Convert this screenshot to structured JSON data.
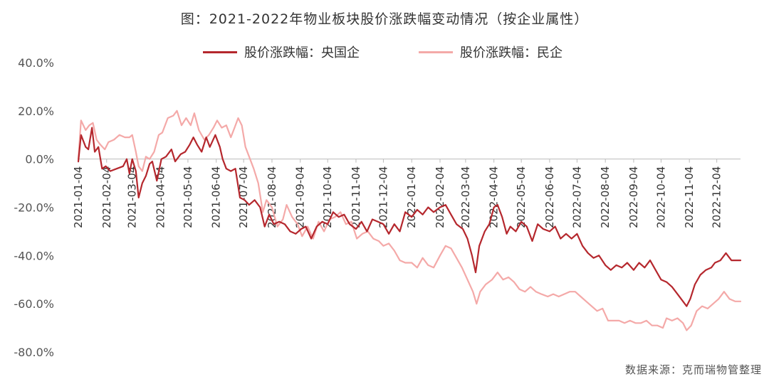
{
  "title": "图：2021-2022年物业板块股价涨跌幅变动情况（按企业属性）",
  "source": "数据来源：克而瑞物管整理",
  "chart_data": {
    "type": "line",
    "title": "图：2021-2022年物业板块股价涨跌幅变动情况（按企业属性）",
    "ylim": [
      -0.8,
      0.4
    ],
    "yticks": [
      0.4,
      0.2,
      0.0,
      -0.2,
      -0.4,
      -0.6,
      -0.8
    ],
    "ytick_labels": [
      "40.0%",
      "20.0%",
      "0.0%",
      "-20.0%",
      "-40.0%",
      "-60.0%",
      "-80.0%"
    ],
    "xlim": [
      "2021-01-04",
      "2022-12-30"
    ],
    "xticks": [
      "2021-01-04",
      "2021-02-04",
      "2021-03-04",
      "2021-04-04",
      "2021-05-04",
      "2021-06-04",
      "2021-07-04",
      "2021-08-04",
      "2021-09-04",
      "2021-10-04",
      "2021-11-04",
      "2021-12-04",
      "2022-01-04",
      "2022-02-04",
      "2022-03-04",
      "2022-04-04",
      "2022-05-04",
      "2022-06-04",
      "2022-07-04",
      "2022-08-04",
      "2022-09-04",
      "2022-10-04",
      "2022-11-04",
      "2022-12-04"
    ],
    "legend_position": "top",
    "grid": false,
    "series": [
      {
        "name": "股价涨跌幅：央国企",
        "color": "#b5272d",
        "points": [
          [
            "2021-01-04",
            -0.01
          ],
          [
            "2021-01-07",
            0.1
          ],
          [
            "2021-01-12",
            0.05
          ],
          [
            "2021-01-15",
            0.04
          ],
          [
            "2021-01-19",
            0.13
          ],
          [
            "2021-01-22",
            0.03
          ],
          [
            "2021-01-26",
            0.05
          ],
          [
            "2021-01-30",
            -0.04
          ],
          [
            "2021-02-03",
            -0.03
          ],
          [
            "2021-02-08",
            -0.05
          ],
          [
            "2021-02-15",
            -0.04
          ],
          [
            "2021-02-22",
            -0.03
          ],
          [
            "2021-02-26",
            0.0
          ],
          [
            "2021-03-01",
            -0.06
          ],
          [
            "2021-03-04",
            0.0
          ],
          [
            "2021-03-08",
            -0.05
          ],
          [
            "2021-03-11",
            -0.16
          ],
          [
            "2021-03-15",
            -0.1
          ],
          [
            "2021-03-19",
            -0.07
          ],
          [
            "2021-03-23",
            -0.02
          ],
          [
            "2021-03-26",
            -0.01
          ],
          [
            "2021-03-31",
            -0.09
          ],
          [
            "2021-04-05",
            0.0
          ],
          [
            "2021-04-10",
            0.01
          ],
          [
            "2021-04-16",
            0.04
          ],
          [
            "2021-04-20",
            -0.01
          ],
          [
            "2021-04-26",
            0.02
          ],
          [
            "2021-05-01",
            0.03
          ],
          [
            "2021-05-06",
            0.06
          ],
          [
            "2021-05-10",
            0.09
          ],
          [
            "2021-05-14",
            0.06
          ],
          [
            "2021-05-19",
            0.03
          ],
          [
            "2021-05-24",
            0.09
          ],
          [
            "2021-05-28",
            0.05
          ],
          [
            "2021-06-03",
            0.1
          ],
          [
            "2021-06-08",
            0.05
          ],
          [
            "2021-06-11",
            0.0
          ],
          [
            "2021-06-15",
            -0.04
          ],
          [
            "2021-06-20",
            -0.05
          ],
          [
            "2021-06-25",
            -0.04
          ],
          [
            "2021-06-30",
            -0.16
          ],
          [
            "2021-07-05",
            -0.17
          ],
          [
            "2021-07-10",
            -0.19
          ],
          [
            "2021-07-16",
            -0.17
          ],
          [
            "2021-07-22",
            -0.2
          ],
          [
            "2021-07-27",
            -0.28
          ],
          [
            "2021-08-01",
            -0.23
          ],
          [
            "2021-08-06",
            -0.27
          ],
          [
            "2021-08-12",
            -0.26
          ],
          [
            "2021-08-18",
            -0.27
          ],
          [
            "2021-08-24",
            -0.3
          ],
          [
            "2021-08-30",
            -0.31
          ],
          [
            "2021-09-05",
            -0.29
          ],
          [
            "2021-09-10",
            -0.28
          ],
          [
            "2021-09-16",
            -0.33
          ],
          [
            "2021-09-22",
            -0.28
          ],
          [
            "2021-09-28",
            -0.26
          ],
          [
            "2021-10-04",
            -0.27
          ],
          [
            "2021-10-10",
            -0.22
          ],
          [
            "2021-10-16",
            -0.24
          ],
          [
            "2021-10-22",
            -0.23
          ],
          [
            "2021-10-28",
            -0.27
          ],
          [
            "2021-11-04",
            -0.29
          ],
          [
            "2021-11-10",
            -0.26
          ],
          [
            "2021-11-16",
            -0.3
          ],
          [
            "2021-11-22",
            -0.25
          ],
          [
            "2021-11-28",
            -0.26
          ],
          [
            "2021-12-04",
            -0.27
          ],
          [
            "2021-12-10",
            -0.31
          ],
          [
            "2021-12-16",
            -0.27
          ],
          [
            "2021-12-22",
            -0.3
          ],
          [
            "2021-12-28",
            -0.22
          ],
          [
            "2022-01-04",
            -0.24
          ],
          [
            "2022-01-10",
            -0.21
          ],
          [
            "2022-01-16",
            -0.23
          ],
          [
            "2022-01-22",
            -0.2
          ],
          [
            "2022-01-28",
            -0.22
          ],
          [
            "2022-02-04",
            -0.2
          ],
          [
            "2022-02-10",
            -0.19
          ],
          [
            "2022-02-16",
            -0.23
          ],
          [
            "2022-02-22",
            -0.27
          ],
          [
            "2022-03-01",
            -0.29
          ],
          [
            "2022-03-06",
            -0.33
          ],
          [
            "2022-03-11",
            -0.4
          ],
          [
            "2022-03-15",
            -0.47
          ],
          [
            "2022-03-19",
            -0.36
          ],
          [
            "2022-03-25",
            -0.3
          ],
          [
            "2022-03-30",
            -0.27
          ],
          [
            "2022-04-04",
            -0.2
          ],
          [
            "2022-04-08",
            -0.19
          ],
          [
            "2022-04-13",
            -0.24
          ],
          [
            "2022-04-18",
            -0.31
          ],
          [
            "2022-04-22",
            -0.28
          ],
          [
            "2022-04-28",
            -0.3
          ],
          [
            "2022-05-04",
            -0.26
          ],
          [
            "2022-05-10",
            -0.28
          ],
          [
            "2022-05-16",
            -0.34
          ],
          [
            "2022-05-22",
            -0.27
          ],
          [
            "2022-05-28",
            -0.29
          ],
          [
            "2022-06-04",
            -0.3
          ],
          [
            "2022-06-10",
            -0.28
          ],
          [
            "2022-06-16",
            -0.33
          ],
          [
            "2022-06-22",
            -0.31
          ],
          [
            "2022-06-28",
            -0.33
          ],
          [
            "2022-07-04",
            -0.31
          ],
          [
            "2022-07-10",
            -0.36
          ],
          [
            "2022-07-16",
            -0.39
          ],
          [
            "2022-07-22",
            -0.41
          ],
          [
            "2022-07-28",
            -0.4
          ],
          [
            "2022-08-04",
            -0.44
          ],
          [
            "2022-08-10",
            -0.46
          ],
          [
            "2022-08-16",
            -0.44
          ],
          [
            "2022-08-22",
            -0.45
          ],
          [
            "2022-08-28",
            -0.43
          ],
          [
            "2022-09-04",
            -0.46
          ],
          [
            "2022-09-10",
            -0.43
          ],
          [
            "2022-09-16",
            -0.45
          ],
          [
            "2022-09-22",
            -0.42
          ],
          [
            "2022-09-28",
            -0.46
          ],
          [
            "2022-10-04",
            -0.5
          ],
          [
            "2022-10-10",
            -0.51
          ],
          [
            "2022-10-16",
            -0.53
          ],
          [
            "2022-10-22",
            -0.56
          ],
          [
            "2022-10-28",
            -0.59
          ],
          [
            "2022-11-01",
            -0.61
          ],
          [
            "2022-11-05",
            -0.58
          ],
          [
            "2022-11-10",
            -0.52
          ],
          [
            "2022-11-16",
            -0.48
          ],
          [
            "2022-11-22",
            -0.46
          ],
          [
            "2022-11-28",
            -0.45
          ],
          [
            "2022-12-02",
            -0.43
          ],
          [
            "2022-12-08",
            -0.42
          ],
          [
            "2022-12-14",
            -0.39
          ],
          [
            "2022-12-20",
            -0.42
          ],
          [
            "2022-12-26",
            -0.42
          ],
          [
            "2022-12-30",
            -0.42
          ]
        ]
      },
      {
        "name": "股价涨跌幅：民企",
        "color": "#f4a9a8",
        "points": [
          [
            "2021-01-04",
            0.0
          ],
          [
            "2021-01-07",
            0.16
          ],
          [
            "2021-01-12",
            0.12
          ],
          [
            "2021-01-16",
            0.14
          ],
          [
            "2021-01-20",
            0.15
          ],
          [
            "2021-01-24",
            0.08
          ],
          [
            "2021-01-28",
            0.06
          ],
          [
            "2021-02-02",
            0.04
          ],
          [
            "2021-02-06",
            0.07
          ],
          [
            "2021-02-12",
            0.08
          ],
          [
            "2021-02-18",
            0.1
          ],
          [
            "2021-02-24",
            0.09
          ],
          [
            "2021-03-01",
            0.09
          ],
          [
            "2021-03-04",
            0.1
          ],
          [
            "2021-03-08",
            0.03
          ],
          [
            "2021-03-11",
            -0.03
          ],
          [
            "2021-03-15",
            -0.05
          ],
          [
            "2021-03-19",
            0.01
          ],
          [
            "2021-03-23",
            0.0
          ],
          [
            "2021-03-28",
            0.03
          ],
          [
            "2021-04-02",
            0.1
          ],
          [
            "2021-04-06",
            0.11
          ],
          [
            "2021-04-12",
            0.17
          ],
          [
            "2021-04-18",
            0.18
          ],
          [
            "2021-04-22",
            0.2
          ],
          [
            "2021-04-27",
            0.14
          ],
          [
            "2021-05-02",
            0.17
          ],
          [
            "2021-05-07",
            0.14
          ],
          [
            "2021-05-11",
            0.19
          ],
          [
            "2021-05-16",
            0.12
          ],
          [
            "2021-05-22",
            0.08
          ],
          [
            "2021-05-27",
            0.1
          ],
          [
            "2021-06-01",
            0.13
          ],
          [
            "2021-06-05",
            0.16
          ],
          [
            "2021-06-10",
            0.13
          ],
          [
            "2021-06-15",
            0.14
          ],
          [
            "2021-06-20",
            0.09
          ],
          [
            "2021-06-24",
            0.13
          ],
          [
            "2021-06-28",
            0.17
          ],
          [
            "2021-07-02",
            0.14
          ],
          [
            "2021-07-06",
            0.05
          ],
          [
            "2021-07-10",
            0.01
          ],
          [
            "2021-07-15",
            -0.04
          ],
          [
            "2021-07-20",
            -0.1
          ],
          [
            "2021-07-25",
            -0.22
          ],
          [
            "2021-07-29",
            -0.17
          ],
          [
            "2021-08-04",
            -0.2
          ],
          [
            "2021-08-10",
            -0.28
          ],
          [
            "2021-08-16",
            -0.25
          ],
          [
            "2021-08-20",
            -0.19
          ],
          [
            "2021-08-26",
            -0.24
          ],
          [
            "2021-09-01",
            -0.27
          ],
          [
            "2021-09-06",
            -0.32
          ],
          [
            "2021-09-12",
            -0.28
          ],
          [
            "2021-09-18",
            -0.33
          ],
          [
            "2021-09-24",
            -0.26
          ],
          [
            "2021-09-30",
            -0.3
          ],
          [
            "2021-10-06",
            -0.25
          ],
          [
            "2021-10-12",
            -0.24
          ],
          [
            "2021-10-18",
            -0.22
          ],
          [
            "2021-10-24",
            -0.27
          ],
          [
            "2021-10-30",
            -0.26
          ],
          [
            "2021-11-05",
            -0.33
          ],
          [
            "2021-11-11",
            -0.31
          ],
          [
            "2021-11-17",
            -0.3
          ],
          [
            "2021-11-23",
            -0.33
          ],
          [
            "2021-11-29",
            -0.34
          ],
          [
            "2021-12-04",
            -0.36
          ],
          [
            "2021-12-10",
            -0.35
          ],
          [
            "2021-12-16",
            -0.38
          ],
          [
            "2021-12-22",
            -0.42
          ],
          [
            "2021-12-28",
            -0.43
          ],
          [
            "2022-01-04",
            -0.43
          ],
          [
            "2022-01-10",
            -0.45
          ],
          [
            "2022-01-16",
            -0.41
          ],
          [
            "2022-01-22",
            -0.44
          ],
          [
            "2022-01-28",
            -0.45
          ],
          [
            "2022-02-04",
            -0.4
          ],
          [
            "2022-02-10",
            -0.36
          ],
          [
            "2022-02-16",
            -0.37
          ],
          [
            "2022-02-22",
            -0.41
          ],
          [
            "2022-02-28",
            -0.45
          ],
          [
            "2022-03-06",
            -0.5
          ],
          [
            "2022-03-12",
            -0.55
          ],
          [
            "2022-03-16",
            -0.6
          ],
          [
            "2022-03-20",
            -0.55
          ],
          [
            "2022-03-26",
            -0.52
          ],
          [
            "2022-04-02",
            -0.5
          ],
          [
            "2022-04-08",
            -0.47
          ],
          [
            "2022-04-14",
            -0.5
          ],
          [
            "2022-04-20",
            -0.49
          ],
          [
            "2022-04-26",
            -0.51
          ],
          [
            "2022-05-02",
            -0.54
          ],
          [
            "2022-05-08",
            -0.55
          ],
          [
            "2022-05-14",
            -0.53
          ],
          [
            "2022-05-20",
            -0.55
          ],
          [
            "2022-05-26",
            -0.56
          ],
          [
            "2022-06-02",
            -0.57
          ],
          [
            "2022-06-08",
            -0.56
          ],
          [
            "2022-06-14",
            -0.57
          ],
          [
            "2022-06-20",
            -0.56
          ],
          [
            "2022-06-26",
            -0.55
          ],
          [
            "2022-07-02",
            -0.55
          ],
          [
            "2022-07-08",
            -0.57
          ],
          [
            "2022-07-14",
            -0.59
          ],
          [
            "2022-07-20",
            -0.61
          ],
          [
            "2022-07-26",
            -0.63
          ],
          [
            "2022-08-01",
            -0.62
          ],
          [
            "2022-08-07",
            -0.67
          ],
          [
            "2022-08-13",
            -0.67
          ],
          [
            "2022-08-19",
            -0.67
          ],
          [
            "2022-08-25",
            -0.68
          ],
          [
            "2022-08-31",
            -0.67
          ],
          [
            "2022-09-06",
            -0.68
          ],
          [
            "2022-09-12",
            -0.68
          ],
          [
            "2022-09-18",
            -0.67
          ],
          [
            "2022-09-24",
            -0.69
          ],
          [
            "2022-09-30",
            -0.69
          ],
          [
            "2022-10-06",
            -0.7
          ],
          [
            "2022-10-10",
            -0.66
          ],
          [
            "2022-10-16",
            -0.67
          ],
          [
            "2022-10-22",
            -0.66
          ],
          [
            "2022-10-28",
            -0.68
          ],
          [
            "2022-11-01",
            -0.71
          ],
          [
            "2022-11-06",
            -0.69
          ],
          [
            "2022-11-12",
            -0.63
          ],
          [
            "2022-11-18",
            -0.61
          ],
          [
            "2022-11-24",
            -0.62
          ],
          [
            "2022-11-30",
            -0.6
          ],
          [
            "2022-12-06",
            -0.58
          ],
          [
            "2022-12-12",
            -0.55
          ],
          [
            "2022-12-18",
            -0.58
          ],
          [
            "2022-12-24",
            -0.59
          ],
          [
            "2022-12-30",
            -0.59
          ]
        ]
      }
    ]
  }
}
